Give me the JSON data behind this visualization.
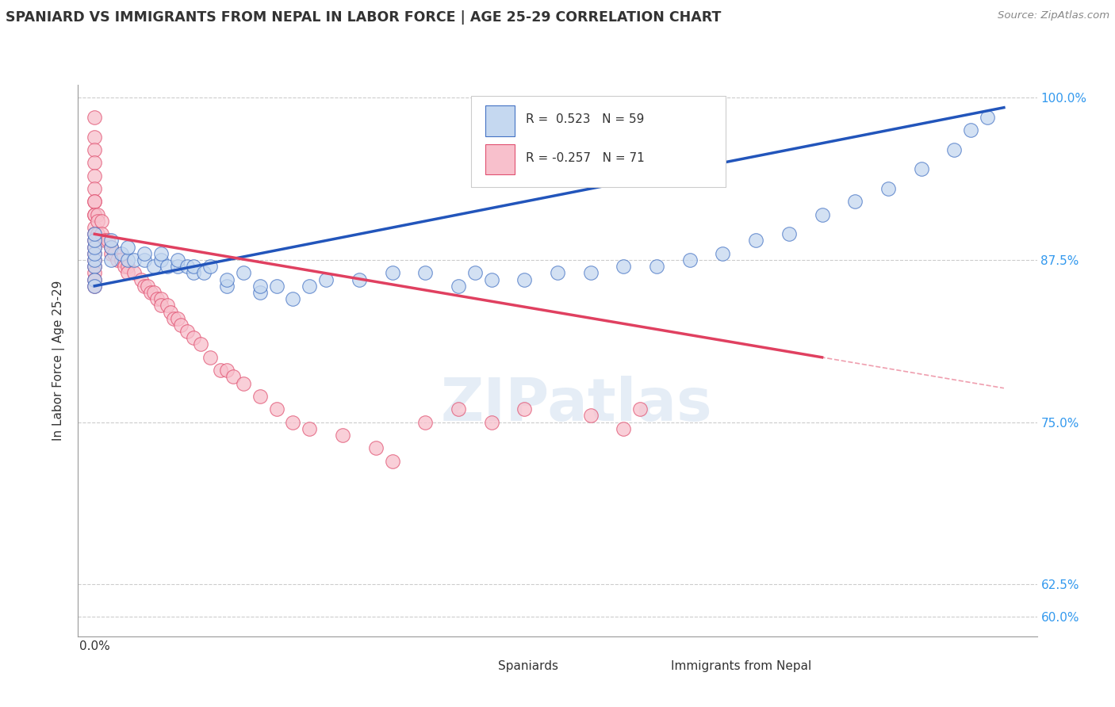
{
  "title": "SPANIARD VS IMMIGRANTS FROM NEPAL IN LABOR FORCE | AGE 25-29 CORRELATION CHART",
  "source_text": "Source: ZipAtlas.com",
  "ylabel": "In Labor Force | Age 25-29",
  "r_spaniard": 0.523,
  "n_spaniard": 59,
  "r_nepal": -0.257,
  "n_nepal": 71,
  "color_spaniard_fill": "#c5d8f0",
  "color_spaniard_edge": "#4472c4",
  "color_nepal_fill": "#f8c0cc",
  "color_nepal_edge": "#e05070",
  "color_spaniard_line": "#2255bb",
  "color_nepal_line": "#e04060",
  "xlim": [
    -0.005,
    0.285
  ],
  "ylim": [
    0.585,
    1.01
  ],
  "yticks": [
    0.6,
    0.625,
    0.75,
    0.875,
    1.0
  ],
  "ytick_labels": [
    "60.0%",
    "62.5%",
    "75.0%",
    "87.5%",
    "100.0%"
  ],
  "watermark": "ZIPatlas",
  "spaniard_x": [
    0.0,
    0.0,
    0.0,
    0.0,
    0.0,
    0.0,
    0.0,
    0.0,
    0.005,
    0.005,
    0.005,
    0.008,
    0.01,
    0.01,
    0.012,
    0.015,
    0.015,
    0.018,
    0.02,
    0.02,
    0.022,
    0.025,
    0.025,
    0.028,
    0.03,
    0.03,
    0.033,
    0.035,
    0.04,
    0.04,
    0.045,
    0.05,
    0.05,
    0.055,
    0.06,
    0.065,
    0.07,
    0.08,
    0.09,
    0.1,
    0.11,
    0.115,
    0.12,
    0.13,
    0.14,
    0.15,
    0.16,
    0.17,
    0.18,
    0.19,
    0.2,
    0.21,
    0.22,
    0.23,
    0.24,
    0.25,
    0.26,
    0.265,
    0.27
  ],
  "spaniard_y": [
    0.87,
    0.875,
    0.88,
    0.885,
    0.89,
    0.895,
    0.86,
    0.855,
    0.875,
    0.885,
    0.89,
    0.88,
    0.875,
    0.885,
    0.875,
    0.875,
    0.88,
    0.87,
    0.875,
    0.88,
    0.87,
    0.87,
    0.875,
    0.87,
    0.865,
    0.87,
    0.865,
    0.87,
    0.855,
    0.86,
    0.865,
    0.85,
    0.855,
    0.855,
    0.845,
    0.855,
    0.86,
    0.86,
    0.865,
    0.865,
    0.855,
    0.865,
    0.86,
    0.86,
    0.865,
    0.865,
    0.87,
    0.87,
    0.875,
    0.88,
    0.89,
    0.895,
    0.91,
    0.92,
    0.93,
    0.945,
    0.96,
    0.975,
    0.985
  ],
  "nepal_x": [
    0.0,
    0.0,
    0.0,
    0.0,
    0.0,
    0.0,
    0.0,
    0.0,
    0.0,
    0.0,
    0.0,
    0.0,
    0.0,
    0.0,
    0.0,
    0.0,
    0.0,
    0.0,
    0.0,
    0.0,
    0.001,
    0.001,
    0.001,
    0.002,
    0.002,
    0.003,
    0.004,
    0.005,
    0.005,
    0.006,
    0.007,
    0.008,
    0.009,
    0.01,
    0.01,
    0.012,
    0.014,
    0.015,
    0.016,
    0.017,
    0.018,
    0.019,
    0.02,
    0.02,
    0.022,
    0.023,
    0.024,
    0.025,
    0.026,
    0.028,
    0.03,
    0.032,
    0.035,
    0.038,
    0.04,
    0.042,
    0.045,
    0.05,
    0.055,
    0.06,
    0.065,
    0.075,
    0.085,
    0.09,
    0.1,
    0.11,
    0.12,
    0.13,
    0.15,
    0.16,
    0.165
  ],
  "nepal_y": [
    0.985,
    0.97,
    0.96,
    0.95,
    0.94,
    0.93,
    0.92,
    0.91,
    0.9,
    0.895,
    0.89,
    0.885,
    0.88,
    0.875,
    0.87,
    0.865,
    0.86,
    0.855,
    0.92,
    0.91,
    0.91,
    0.905,
    0.895,
    0.905,
    0.895,
    0.89,
    0.89,
    0.885,
    0.88,
    0.88,
    0.875,
    0.875,
    0.87,
    0.87,
    0.865,
    0.865,
    0.86,
    0.855,
    0.855,
    0.85,
    0.85,
    0.845,
    0.845,
    0.84,
    0.84,
    0.835,
    0.83,
    0.83,
    0.825,
    0.82,
    0.815,
    0.81,
    0.8,
    0.79,
    0.79,
    0.785,
    0.78,
    0.77,
    0.76,
    0.75,
    0.745,
    0.74,
    0.73,
    0.72,
    0.75,
    0.76,
    0.75,
    0.76,
    0.755,
    0.745,
    0.76
  ]
}
